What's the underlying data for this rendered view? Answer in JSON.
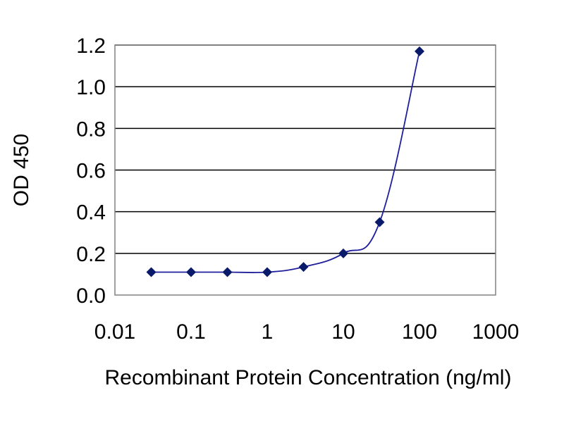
{
  "chart_data": {
    "type": "line",
    "title": "",
    "xlabel": "Recombinant Protein Concentration (ng/ml)",
    "ylabel": "OD 450",
    "x_scale": "log",
    "xlim": [
      0.01,
      1000
    ],
    "ylim": [
      0.0,
      1.2
    ],
    "x_ticks": [
      0.01,
      0.1,
      1,
      10,
      100,
      1000
    ],
    "x_tick_labels": [
      "0.01",
      "0.1",
      "1",
      "10",
      "100",
      "1000"
    ],
    "y_ticks": [
      0.0,
      0.2,
      0.4,
      0.6,
      0.8,
      1.0,
      1.2
    ],
    "y_tick_labels": [
      "0.0",
      "0.2",
      "0.4",
      "0.6",
      "0.8",
      "1.0",
      "1.2"
    ],
    "grid": "horizontal",
    "legend": "none",
    "series": [
      {
        "x": [
          0.03,
          0.1,
          0.3,
          1,
          3,
          10,
          30,
          100
        ],
        "y": [
          0.11,
          0.11,
          0.11,
          0.11,
          0.135,
          0.2,
          0.35,
          1.17
        ]
      }
    ],
    "colors": {
      "line": "#1f1f9c",
      "marker": "#0a1a6b",
      "plot_background": "#ffffff",
      "gridline": "#000000",
      "frame": "#808080"
    }
  }
}
